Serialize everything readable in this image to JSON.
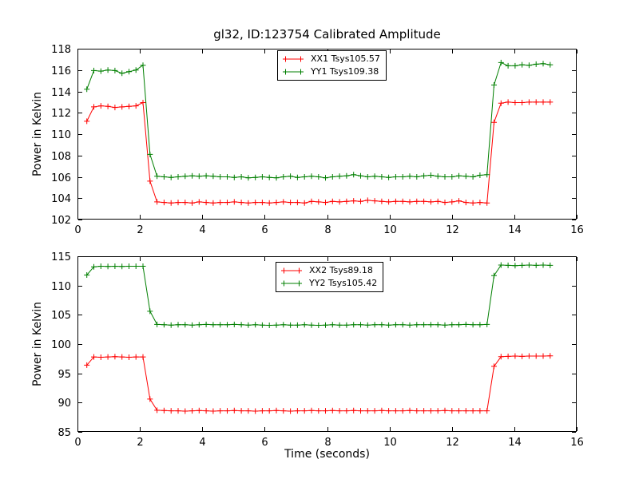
{
  "title": "gl32, ID:123754 Calibrated Amplitude",
  "colors": {
    "red": "#ff0000",
    "green": "#007f00",
    "frame": "#000000"
  },
  "chart_data": [
    {
      "type": "line",
      "ylabel": "Power in Kelvin",
      "xlim": [
        0,
        16
      ],
      "ylim": [
        102,
        118
      ],
      "xticks": [
        0,
        2,
        4,
        6,
        8,
        10,
        12,
        14,
        16
      ],
      "yticks": [
        102,
        104,
        106,
        108,
        110,
        112,
        114,
        116,
        118
      ],
      "legend_position": "upper center",
      "marker": "plus",
      "x": [
        0.3,
        0.525,
        0.75,
        0.975,
        1.2,
        1.425,
        1.65,
        1.875,
        2.1,
        2.325,
        2.55,
        2.775,
        3.0,
        3.225,
        3.45,
        3.675,
        3.9,
        4.125,
        4.35,
        4.575,
        4.8,
        5.025,
        5.25,
        5.475,
        5.7,
        5.925,
        6.15,
        6.375,
        6.6,
        6.825,
        7.05,
        7.275,
        7.5,
        7.725,
        7.95,
        8.175,
        8.4,
        8.625,
        8.85,
        9.075,
        9.3,
        9.525,
        9.75,
        9.975,
        10.2,
        10.425,
        10.65,
        10.875,
        11.1,
        11.325,
        11.55,
        11.775,
        12.0,
        12.225,
        12.45,
        12.675,
        12.9,
        13.125,
        13.35,
        13.575,
        13.8,
        14.025,
        14.25,
        14.475,
        14.7,
        14.925,
        15.15
      ],
      "series": [
        {
          "name": "XX1 Tsys105.57",
          "color": "#ff0000",
          "values": [
            111.2,
            112.55,
            112.65,
            112.6,
            112.5,
            112.55,
            112.6,
            112.65,
            112.95,
            105.6,
            103.65,
            103.6,
            103.55,
            103.6,
            103.6,
            103.55,
            103.65,
            103.6,
            103.55,
            103.6,
            103.6,
            103.65,
            103.6,
            103.55,
            103.6,
            103.6,
            103.55,
            103.6,
            103.65,
            103.6,
            103.6,
            103.55,
            103.7,
            103.65,
            103.6,
            103.7,
            103.65,
            103.7,
            103.75,
            103.7,
            103.8,
            103.75,
            103.7,
            103.65,
            103.7,
            103.7,
            103.65,
            103.7,
            103.7,
            103.65,
            103.7,
            103.6,
            103.65,
            103.75,
            103.6,
            103.55,
            103.6,
            103.55,
            111.1,
            112.9,
            113.0,
            112.95,
            112.95,
            113.0,
            113.0,
            113.0,
            113.0
          ]
        },
        {
          "name": "YY1 Tsys109.38",
          "color": "#007f00",
          "values": [
            114.2,
            115.95,
            115.9,
            116.0,
            115.95,
            115.7,
            115.85,
            116.0,
            116.45,
            108.1,
            106.05,
            106.0,
            105.95,
            106.0,
            106.05,
            106.1,
            106.05,
            106.1,
            106.05,
            106.0,
            106.0,
            105.95,
            106.0,
            105.9,
            105.95,
            106.0,
            105.95,
            105.9,
            106.0,
            106.05,
            105.95,
            106.0,
            106.05,
            106.0,
            105.9,
            106.0,
            106.05,
            106.1,
            106.2,
            106.1,
            106.0,
            106.05,
            106.0,
            105.95,
            106.0,
            106.0,
            106.05,
            106.0,
            106.1,
            106.15,
            106.05,
            106.0,
            106.0,
            106.1,
            106.05,
            106.0,
            106.15,
            106.2,
            114.6,
            116.7,
            116.4,
            116.4,
            116.5,
            116.45,
            116.55,
            116.6,
            116.5
          ]
        }
      ]
    },
    {
      "type": "line",
      "ylabel": "Power in Kelvin",
      "xlabel": "Time (seconds)",
      "xlim": [
        0,
        16
      ],
      "ylim": [
        85,
        115
      ],
      "xticks": [
        0,
        2,
        4,
        6,
        8,
        10,
        12,
        14,
        16
      ],
      "yticks": [
        85,
        90,
        95,
        100,
        105,
        110,
        115
      ],
      "legend_position": "upper center",
      "marker": "plus",
      "x": [
        0.3,
        0.525,
        0.75,
        0.975,
        1.2,
        1.425,
        1.65,
        1.875,
        2.1,
        2.325,
        2.55,
        2.775,
        3.0,
        3.225,
        3.45,
        3.675,
        3.9,
        4.125,
        4.35,
        4.575,
        4.8,
        5.025,
        5.25,
        5.475,
        5.7,
        5.925,
        6.15,
        6.375,
        6.6,
        6.825,
        7.05,
        7.275,
        7.5,
        7.725,
        7.95,
        8.175,
        8.4,
        8.625,
        8.85,
        9.075,
        9.3,
        9.525,
        9.75,
        9.975,
        10.2,
        10.425,
        10.65,
        10.875,
        11.1,
        11.325,
        11.55,
        11.775,
        12.0,
        12.225,
        12.45,
        12.675,
        12.9,
        13.125,
        13.35,
        13.575,
        13.8,
        14.025,
        14.25,
        14.475,
        14.7,
        14.925,
        15.15
      ],
      "series": [
        {
          "name": "XX2 Tsys89.18",
          "color": "#ff0000",
          "values": [
            96.4,
            97.8,
            97.75,
            97.8,
            97.85,
            97.8,
            97.75,
            97.8,
            97.8,
            90.6,
            88.7,
            88.65,
            88.6,
            88.6,
            88.55,
            88.6,
            88.65,
            88.6,
            88.55,
            88.6,
            88.6,
            88.65,
            88.6,
            88.6,
            88.55,
            88.6,
            88.6,
            88.65,
            88.6,
            88.55,
            88.6,
            88.6,
            88.65,
            88.6,
            88.6,
            88.65,
            88.6,
            88.6,
            88.65,
            88.6,
            88.6,
            88.6,
            88.65,
            88.6,
            88.6,
            88.6,
            88.65,
            88.6,
            88.6,
            88.6,
            88.6,
            88.65,
            88.6,
            88.6,
            88.6,
            88.6,
            88.6,
            88.6,
            96.2,
            97.85,
            97.9,
            97.95,
            97.9,
            97.95,
            97.95,
            97.95,
            98.0
          ]
        },
        {
          "name": "YY2 Tsys105.42",
          "color": "#007f00",
          "values": [
            111.8,
            113.2,
            113.3,
            113.25,
            113.3,
            113.25,
            113.3,
            113.3,
            113.3,
            105.6,
            103.35,
            103.3,
            103.25,
            103.3,
            103.3,
            103.25,
            103.3,
            103.35,
            103.3,
            103.3,
            103.3,
            103.35,
            103.3,
            103.25,
            103.3,
            103.25,
            103.2,
            103.25,
            103.3,
            103.25,
            103.25,
            103.3,
            103.25,
            103.2,
            103.25,
            103.3,
            103.25,
            103.25,
            103.3,
            103.3,
            103.25,
            103.3,
            103.3,
            103.25,
            103.3,
            103.3,
            103.25,
            103.3,
            103.3,
            103.3,
            103.3,
            103.25,
            103.3,
            103.3,
            103.35,
            103.3,
            103.3,
            103.35,
            111.7,
            113.5,
            113.45,
            113.4,
            113.45,
            113.5,
            113.45,
            113.5,
            113.45
          ]
        }
      ]
    }
  ]
}
